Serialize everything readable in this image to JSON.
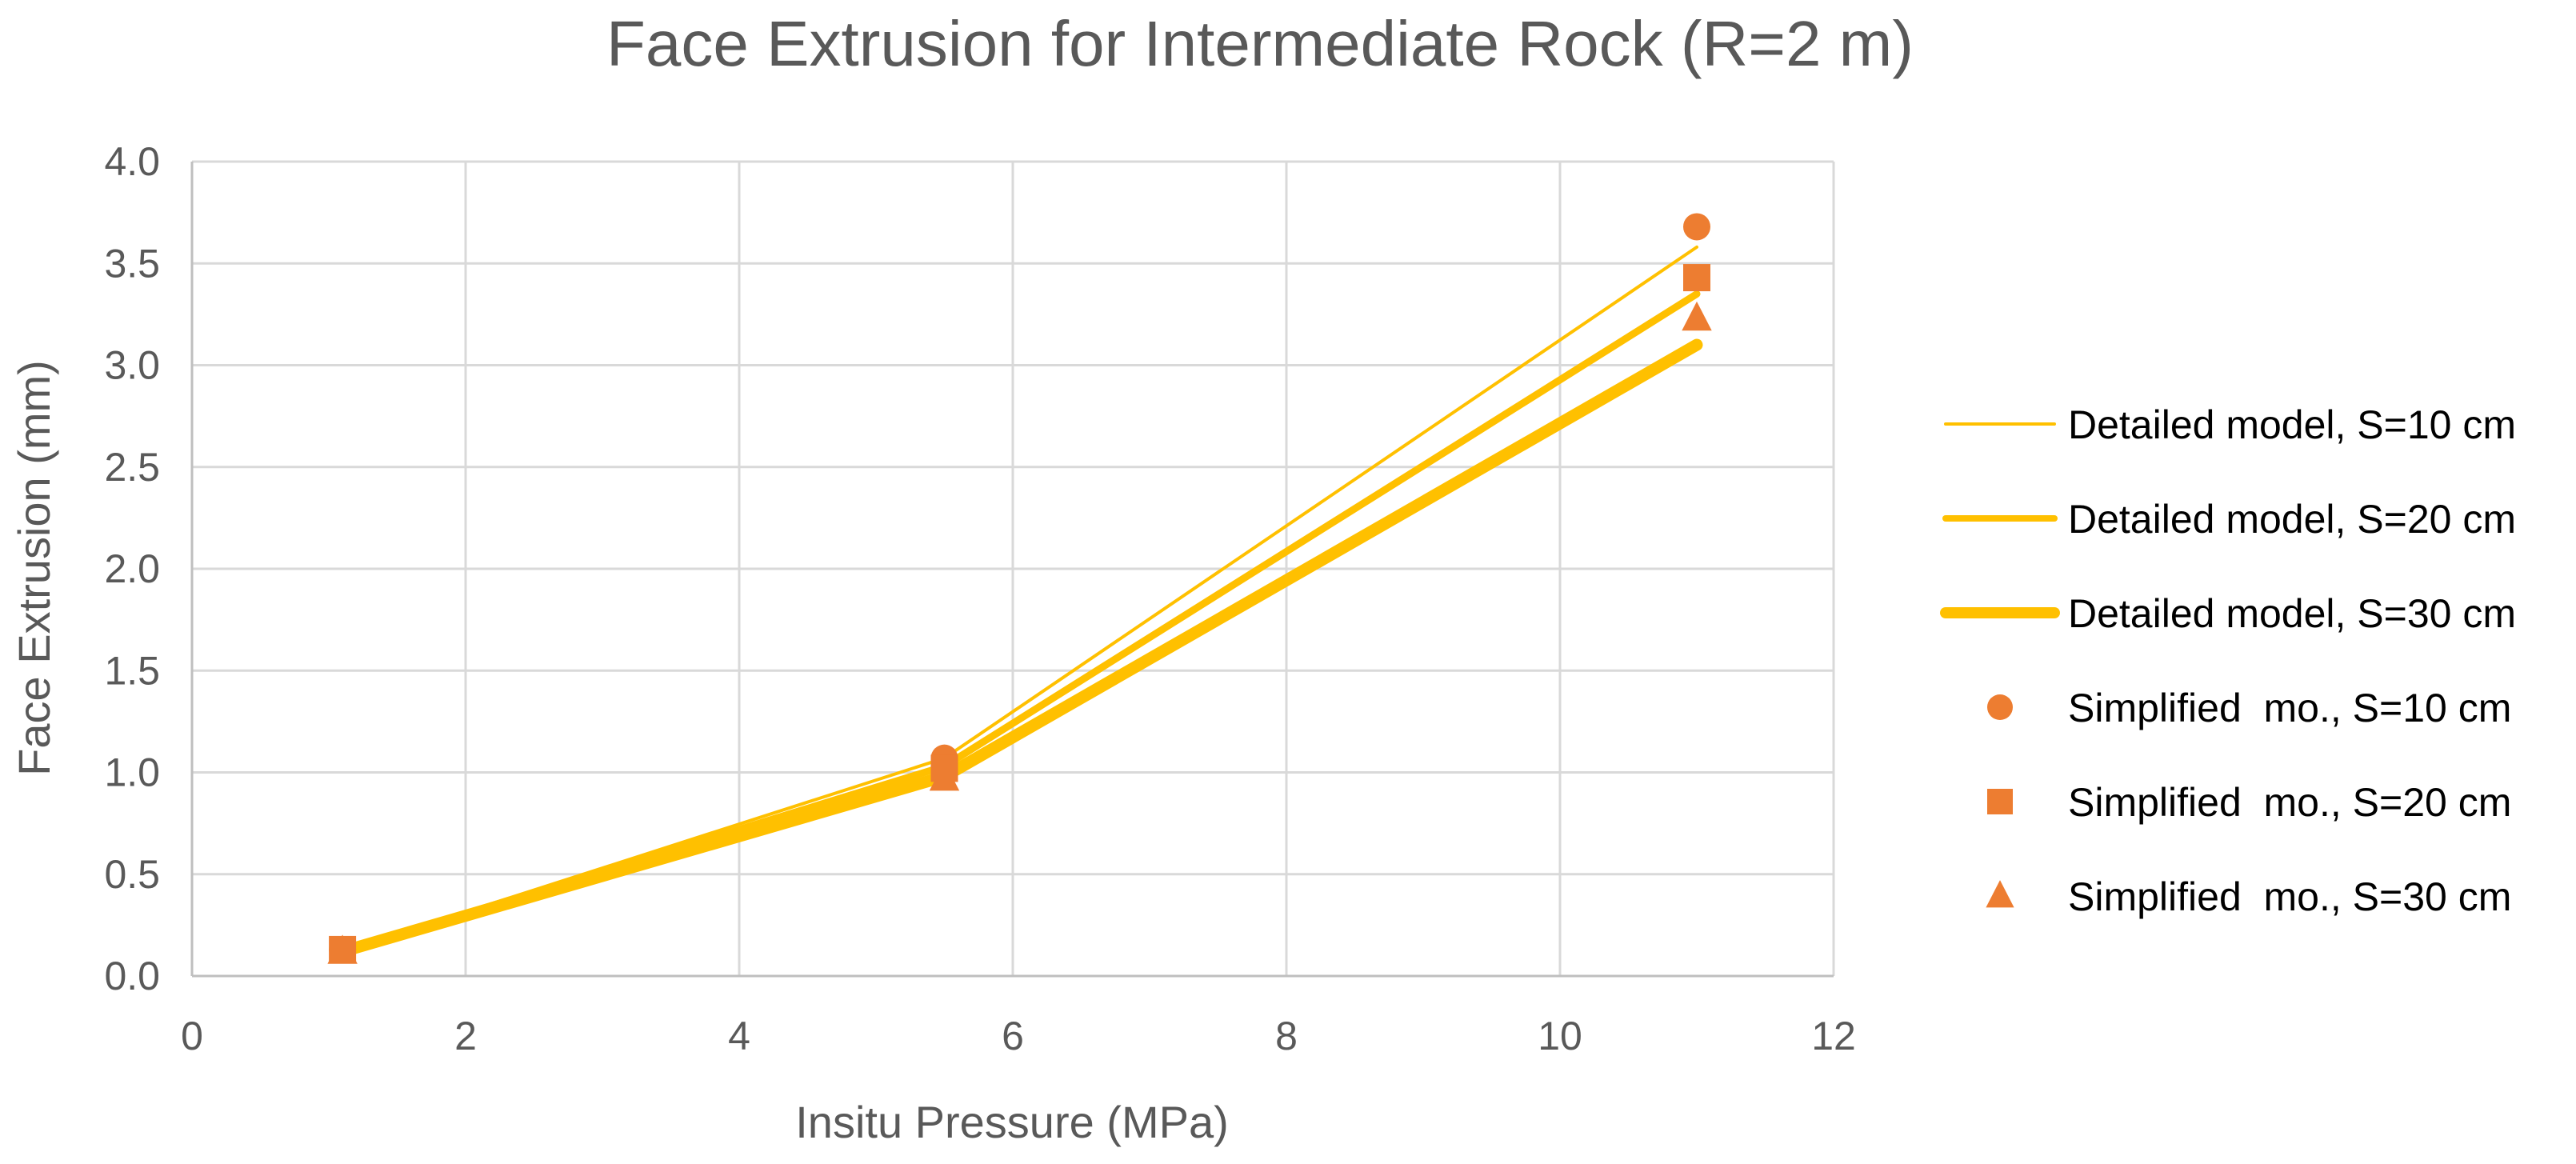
{
  "chart_data": {
    "type": "line",
    "title": "Face Extrusion for Intermediate Rock (R=2 m)",
    "xlabel": "Insitu Pressure (MPa)",
    "ylabel": "Face Extrusion (mm)",
    "xlim": [
      0,
      12
    ],
    "ylim": [
      0,
      4
    ],
    "xticks": [
      0,
      2,
      4,
      6,
      8,
      10,
      12
    ],
    "xtick_labels": [
      "0",
      "2",
      "4",
      "6",
      "8",
      "10",
      "12"
    ],
    "yticks": [
      0,
      0.5,
      1.0,
      1.5,
      2.0,
      2.5,
      3.0,
      3.5,
      4.0
    ],
    "ytick_labels": [
      "0.0",
      "0.5",
      "1.0",
      "1.5",
      "2.0",
      "2.5",
      "3.0",
      "3.5",
      "4.0"
    ],
    "grid": true,
    "legend_position": "right",
    "series": [
      {
        "name": "Detailed model, S=10 cm",
        "kind": "line",
        "weight": "thin",
        "color": "#FFC000",
        "x": [
          1.1,
          5.5,
          11
        ],
        "y": [
          0.12,
          1.07,
          3.58
        ]
      },
      {
        "name": "Detailed model, S=20 cm",
        "kind": "line",
        "weight": "medium",
        "color": "#FFC000",
        "x": [
          1.1,
          5.5,
          11
        ],
        "y": [
          0.12,
          1.03,
          3.35
        ]
      },
      {
        "name": "Detailed model, S=30 cm",
        "kind": "line",
        "weight": "thick",
        "color": "#FFC000",
        "x": [
          1.1,
          5.5,
          11
        ],
        "y": [
          0.12,
          0.98,
          3.1
        ]
      },
      {
        "name": "Simplified  mo., S=10 cm",
        "kind": "marker",
        "marker": "circle",
        "color": "#ED7D31",
        "x": [
          1.1,
          5.5,
          11
        ],
        "y": [
          0.13,
          1.07,
          3.68
        ]
      },
      {
        "name": "Simplified  mo., S=20 cm",
        "kind": "marker",
        "marker": "square",
        "color": "#ED7D31",
        "x": [
          1.1,
          5.5,
          11
        ],
        "y": [
          0.13,
          1.02,
          3.43
        ]
      },
      {
        "name": "Simplified  mo., S=30 cm",
        "kind": "marker",
        "marker": "triangle",
        "color": "#ED7D31",
        "x": [
          1.1,
          5.5,
          11
        ],
        "y": [
          0.12,
          0.97,
          3.23
        ]
      }
    ]
  }
}
